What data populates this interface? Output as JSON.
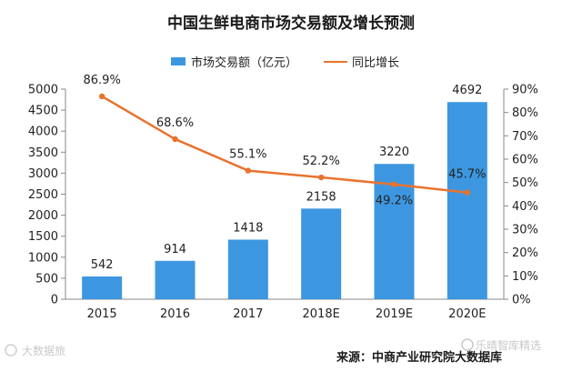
{
  "chart_data": {
    "type": "bar",
    "title": "中国生鲜电商市场交易额及增长预测",
    "categories": [
      "2015",
      "2016",
      "2017",
      "2018E",
      "2019E",
      "2020E"
    ],
    "series": [
      {
        "name": "市场交易额（亿元）",
        "kind": "bar",
        "axis": "left",
        "values": [
          542,
          914,
          1418,
          2158,
          3220,
          4692
        ],
        "color": "#3d97e0"
      },
      {
        "name": "同比增长",
        "kind": "line",
        "axis": "right",
        "values": [
          86.9,
          68.6,
          55.1,
          52.2,
          49.2,
          45.7
        ],
        "labels": [
          "86.9%",
          "68.6%",
          "55.1%",
          "52.2%",
          "49.2%",
          "45.7%"
        ],
        "color": "#e8732f"
      }
    ],
    "bar_labels": [
      "542",
      "914",
      "1418",
      "2158",
      "3220",
      "4692"
    ],
    "ylim_left": [
      0,
      5000
    ],
    "ylim_right": [
      0,
      90
    ],
    "yticks_left": [
      "0",
      "500",
      "1000",
      "1500",
      "2000",
      "2500",
      "3000",
      "3500",
      "4000",
      "4500",
      "5000"
    ],
    "yticks_right": [
      "0%",
      "10%",
      "20%",
      "30%",
      "40%",
      "50%",
      "60%",
      "70%",
      "80%",
      "90%"
    ],
    "legend": [
      "市场交易额（亿元）",
      "同比增长"
    ],
    "legend_position": "top-center",
    "source": "来源：中商产业研究院大数据库"
  },
  "watermarks": {
    "left": "大数据旅",
    "right": "乐晴智库精选"
  }
}
